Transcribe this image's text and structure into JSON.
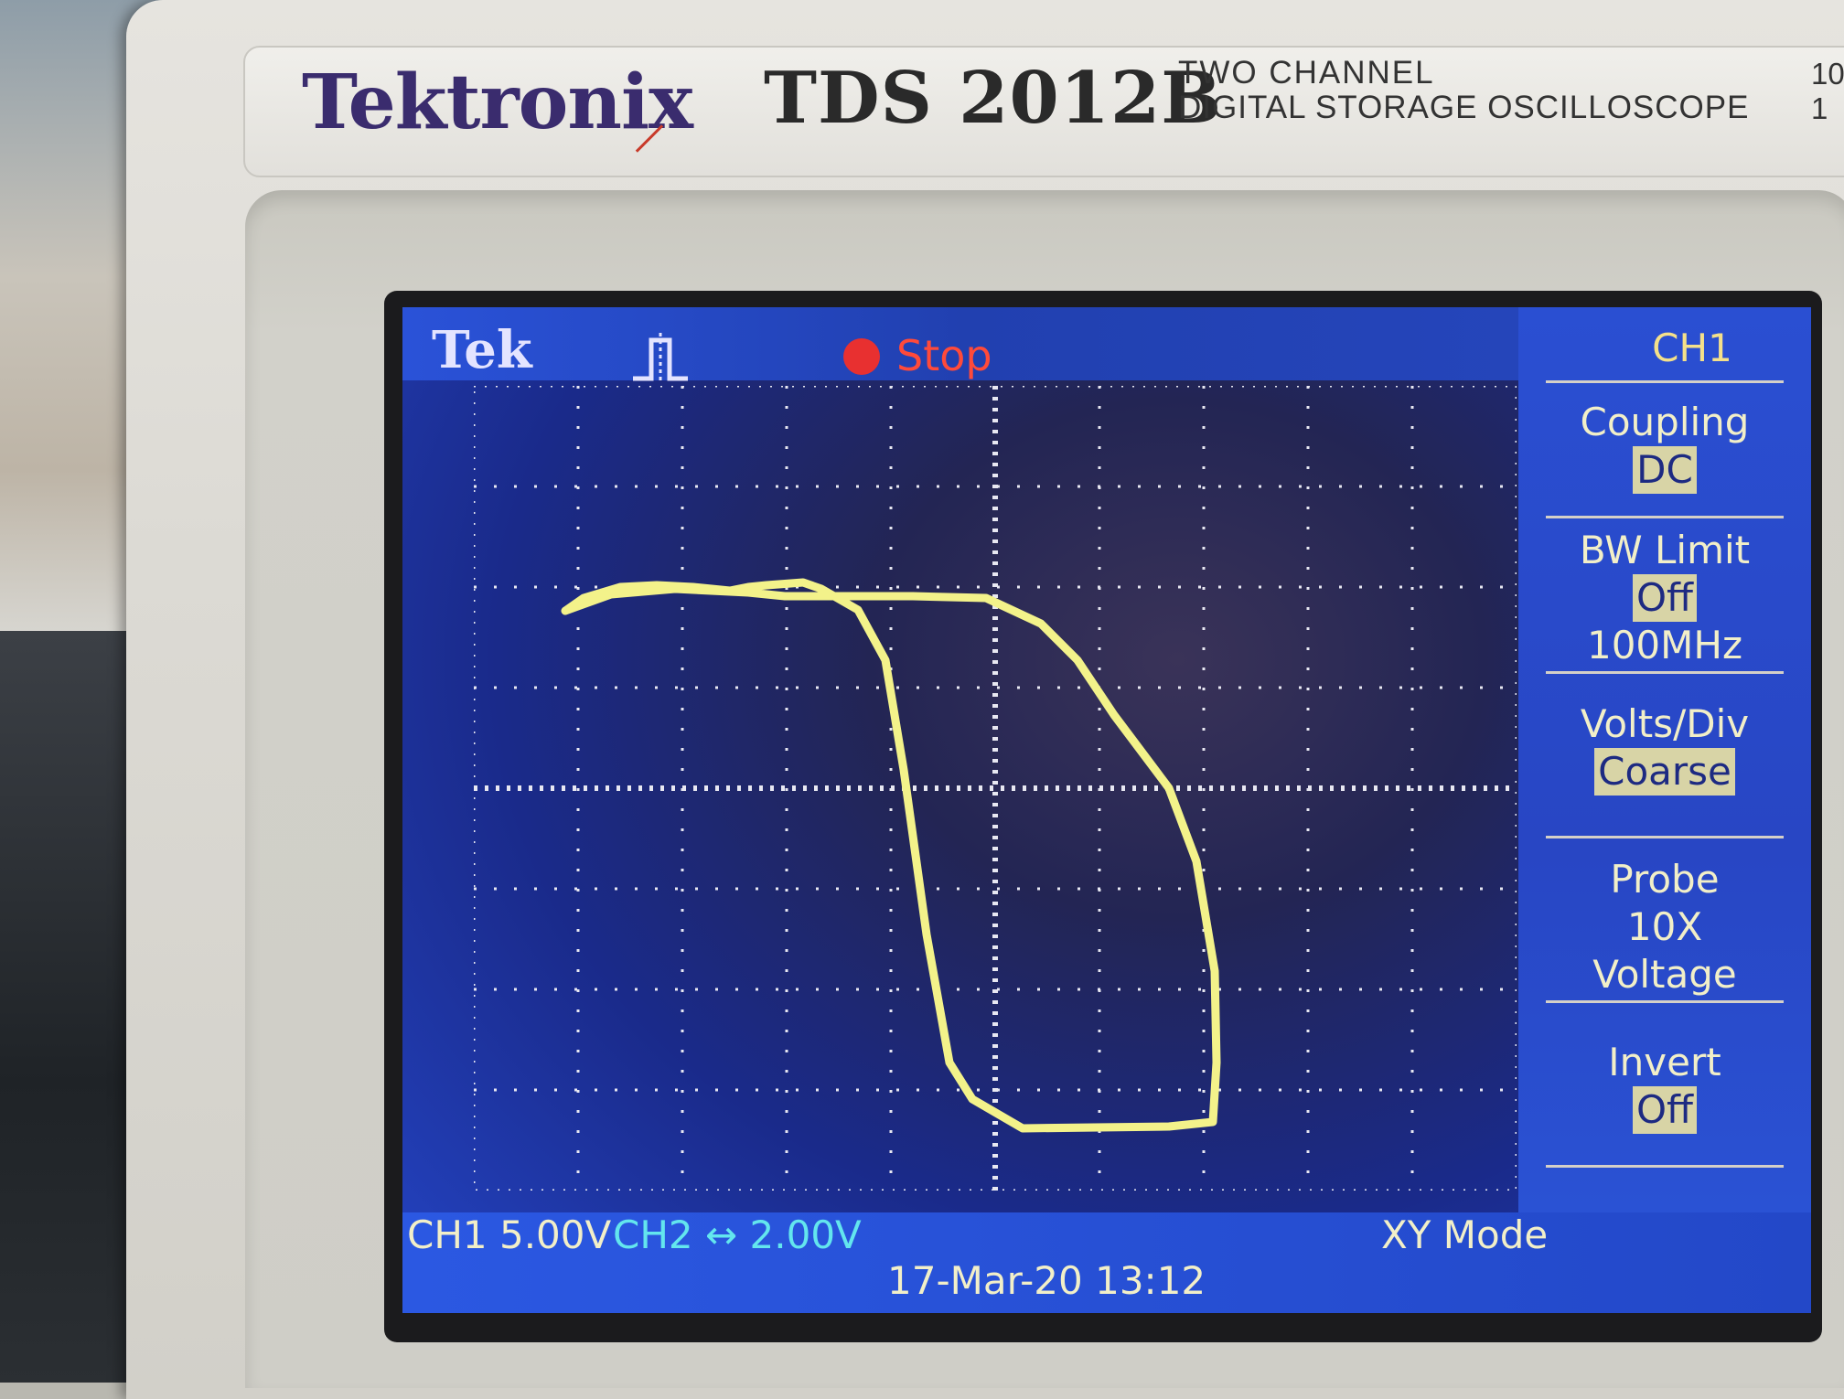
{
  "instrument": {
    "brand": "Tektronix",
    "model": "TDS 2012B",
    "description_line1": "TWO CHANNEL",
    "description_line2": "DIGITAL STORAGE OSCILLOSCOPE",
    "side_code_line1": "10",
    "side_code_line2": "1"
  },
  "screen": {
    "logo": "Tek",
    "trigger_icon": "pulse-trigger-icon",
    "run_state": "Stop",
    "run_state_color": "#e83030",
    "trace_color": "#f3f28a"
  },
  "menu": {
    "title": "CH1",
    "coupling": {
      "label": "Coupling",
      "value": "DC"
    },
    "bw_limit": {
      "label": "BW Limit",
      "value": "Off",
      "extra": "100MHz"
    },
    "volts_div": {
      "label": "Volts/Div",
      "value": "Coarse"
    },
    "probe": {
      "label": "Probe",
      "value": "10X",
      "extra": "Voltage"
    },
    "invert": {
      "label": "Invert",
      "value": "Off"
    }
  },
  "status": {
    "ch1": "CH1  5.00V",
    "ch2": "CH2 ↔ 2.00V",
    "mode": "XY Mode",
    "timestamp": "17-Mar-20 13:12"
  }
}
